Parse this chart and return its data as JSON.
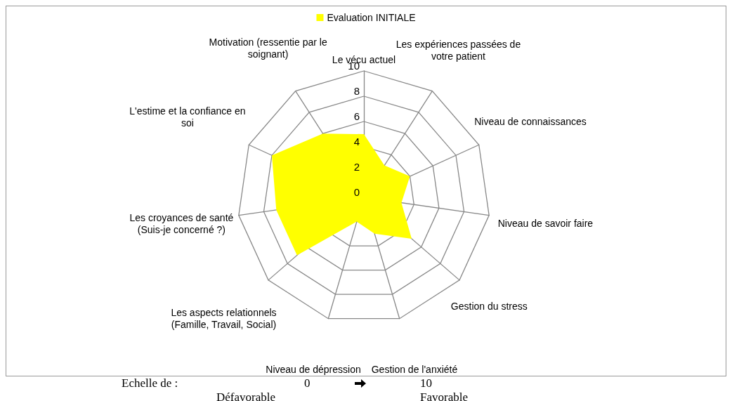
{
  "chart_data": {
    "type": "radar",
    "categories": [
      "Le vécu actuel",
      "Les expériences passées de votre patient",
      "Niveau de connaissances",
      "Niveau de savoir faire",
      "Gestion du stress",
      "Gestion de l'anxiété",
      "Niveau de dépression",
      "Les aspects relationnels (Famille, Travail, Social)",
      "Les croyances de santé (Suis-je concerné ?)",
      "L'estime et la confiance en soi",
      "Motivation (ressentie par le soignant)"
    ],
    "series": [
      {
        "name": "Evaluation INITIALE",
        "color": "#ffff00",
        "values": [
          5,
          3,
          4,
          3,
          5,
          3,
          2,
          7,
          7,
          8,
          6
        ]
      }
    ],
    "ylim": [
      0,
      10
    ],
    "yticks": [
      0,
      2,
      4,
      6,
      8,
      10
    ],
    "grid": true,
    "legend": "top",
    "marker": "none",
    "annotations": [
      "Echelle de :",
      "0",
      "10",
      "Défavorable",
      "Favorable"
    ]
  }
}
